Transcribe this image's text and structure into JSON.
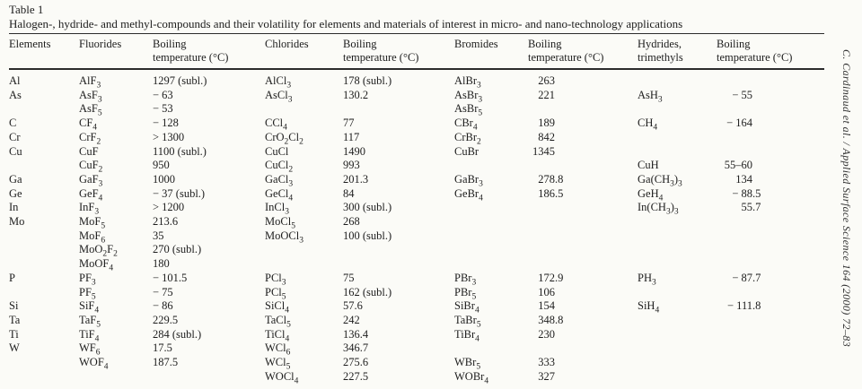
{
  "page": {
    "table_label": "Table 1",
    "caption": "Halogen-, hydride- and methyl-compounds and their volatility for elements and materials of interest in micro- and nano-technology applications",
    "journal_sidebar": "C. Cardinaud et al. / Applied Surface Science 164 (2000) 72–83"
  },
  "table": {
    "columns": [
      {
        "key": "element",
        "label": "Elements"
      },
      {
        "key": "fluoride",
        "label": "Fluorides"
      },
      {
        "key": "fluoride-bp",
        "label": "Boiling\ntemperature (°C)"
      },
      {
        "key": "chloride",
        "label": "Chlorides"
      },
      {
        "key": "chloride-bp",
        "label": "Boiling\ntemperature (°C)"
      },
      {
        "key": "bromide",
        "label": "Bromides"
      },
      {
        "key": "bromide-bp",
        "label": "Boiling\ntemperature (°C)"
      },
      {
        "key": "hydride",
        "label": "Hydrides,\ntrimethyls"
      },
      {
        "key": "hydride-bp",
        "label": "Boiling\ntemperature (°C)"
      }
    ],
    "subscript_marker_note": "underscore before a digit marks a subscript, e.g. AlF_3 renders as AlF3 with subscript 3",
    "rows": [
      [
        "Al",
        "AlF_3",
        "1297 (subl.)",
        "AlCl_3",
        "178 (subl.)",
        "AlBr_3",
        "263",
        "",
        ""
      ],
      [
        "As",
        "AsF_3",
        "− 63",
        "AsCl_3",
        "130.2",
        "AsBr_3",
        "221",
        "AsH_3",
        "− 55"
      ],
      [
        "",
        "AsF_5",
        "− 53",
        "",
        "",
        "AsBr_5",
        "",
        "",
        ""
      ],
      [
        "C",
        "CF_4",
        "− 128",
        "CCl_4",
        "77",
        "CBr_4",
        "189",
        "CH_4",
        "− 164"
      ],
      [
        "Cr",
        "CrF_2",
        "> 1300",
        "CrO_2Cl_2",
        "117",
        "CrBr_2",
        "842",
        "",
        ""
      ],
      [
        "Cu",
        "CuF",
        "1100 (subl.)",
        "CuCl",
        "1490",
        "CuBr",
        "1345",
        "",
        ""
      ],
      [
        "",
        "CuF_2",
        "950",
        "CuCl_2",
        "993",
        "",
        "",
        "CuH",
        "55–60"
      ],
      [
        "Ga",
        "GaF_3",
        "1000",
        "GaCl_3",
        "201.3",
        "GaBr_3",
        "278.8",
        "Ga(CH_3)_3",
        "134"
      ],
      [
        "Ge",
        "GeF_4",
        "− 37 (subl.)",
        "GeCl_4",
        "84",
        "GeBr_4",
        "186.5",
        "GeH_4",
        "− 88.5"
      ],
      [
        "In",
        "InF_3",
        "> 1200",
        "InCl_3",
        "300 (subl.)",
        "",
        "",
        "In(CH_3)_3",
        "55.7"
      ],
      [
        "Mo",
        "MoF_5",
        "213.6",
        "MoCl_5",
        "268",
        "",
        "",
        "",
        ""
      ],
      [
        "",
        "MoF_6",
        "35",
        "MoOCl_3",
        "100 (subl.)",
        "",
        "",
        "",
        ""
      ],
      [
        "",
        "MoO_2F_2",
        "270 (subl.)",
        "",
        "",
        "",
        "",
        "",
        ""
      ],
      [
        "",
        "MoOF_4",
        "180",
        "",
        "",
        "",
        "",
        "",
        ""
      ],
      [
        "P",
        "PF_3",
        "− 101.5",
        "PCl_3",
        "75",
        "PBr_3",
        "172.9",
        "PH_3",
        "− 87.7"
      ],
      [
        "",
        "PF_5",
        "− 75",
        "PCl_5",
        "162 (subl.)",
        "PBr_5",
        "106",
        "",
        ""
      ],
      [
        "Si",
        "SiF_4",
        "− 86",
        "SiCl_4",
        "57.6",
        "SiBr_4",
        "154",
        "SiH_4",
        "− 111.8"
      ],
      [
        "Ta",
        "TaF_5",
        "229.5",
        "TaCl_5",
        "242",
        "TaBr_5",
        "348.8",
        "",
        ""
      ],
      [
        "Ti",
        "TiF_4",
        "284 (subl.)",
        "TiCl_4",
        "136.4",
        "TiBr_4",
        "230",
        "",
        ""
      ],
      [
        "W",
        "WF_6",
        "17.5",
        "WCl_6",
        "346.7",
        "",
        "",
        "",
        ""
      ],
      [
        "",
        "WOF_4",
        "187.5",
        "WCl_5",
        "275.6",
        "WBr_5",
        "333",
        "",
        ""
      ],
      [
        "",
        "",
        "",
        "WOCl_4",
        "227.5",
        "WOBr_4",
        "327",
        "",
        ""
      ]
    ]
  }
}
